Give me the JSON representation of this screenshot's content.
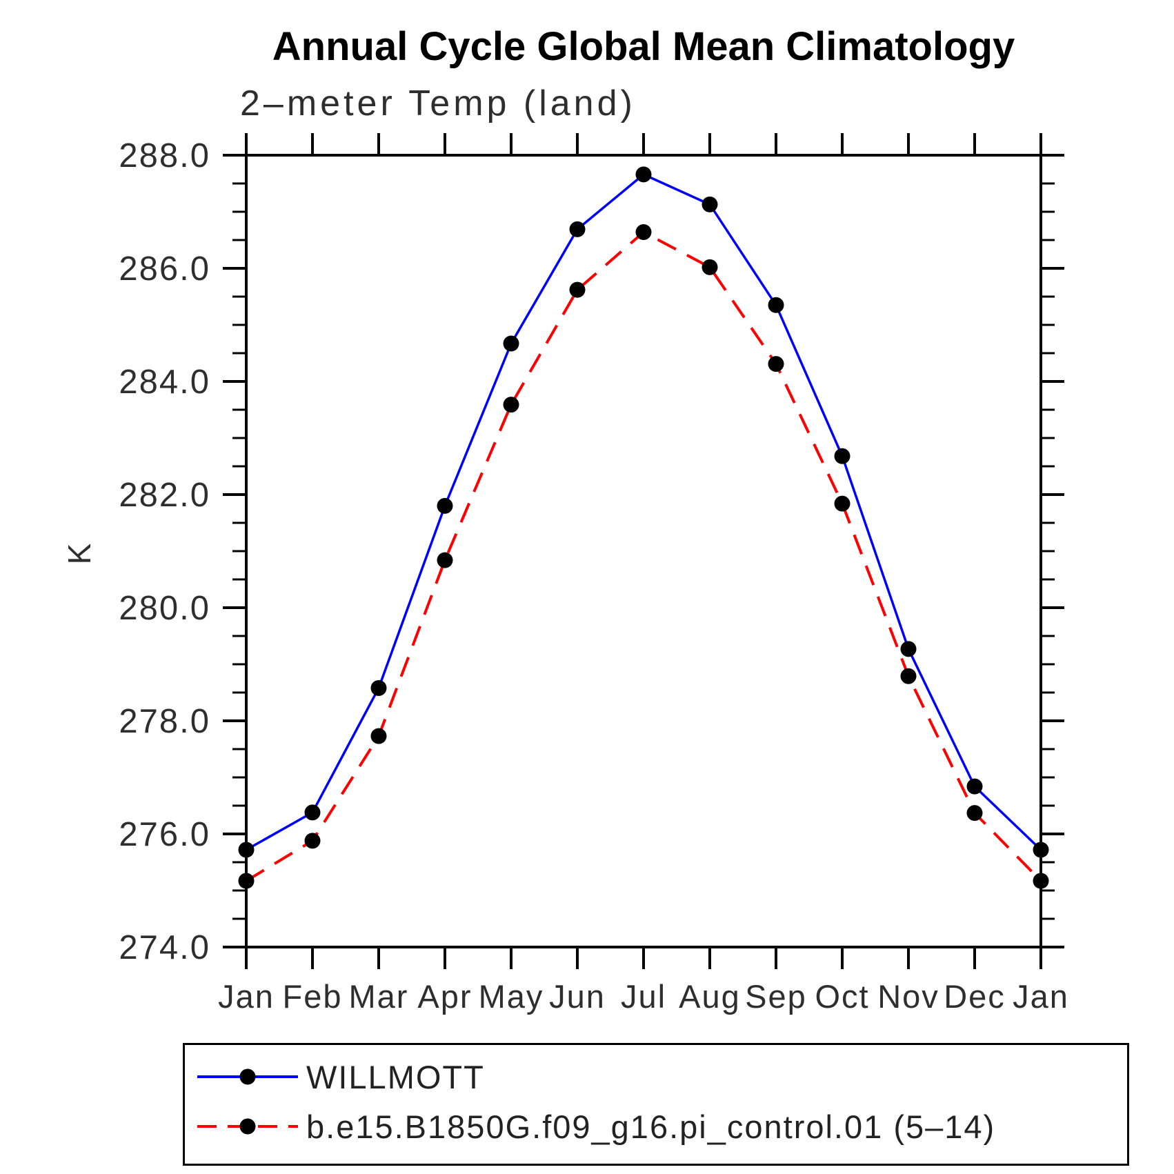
{
  "page": {
    "background_color": "#ffffff",
    "frame_color": "#000000"
  },
  "chart_data": {
    "type": "line",
    "title": "Annual Cycle Global Mean Climatology",
    "subtitle": "2–meter Temp (land)",
    "ylabel": "K",
    "xlabel": "",
    "categories": [
      "Jan",
      "Feb",
      "Mar",
      "Apr",
      "May",
      "Jun",
      "Jul",
      "Aug",
      "Sep",
      "Oct",
      "Nov",
      "Dec",
      "Jan"
    ],
    "series": [
      {
        "name": "WILLMOTT",
        "color": "#0000ff",
        "style": "solid",
        "marker": "circle",
        "marker_color": "#000000",
        "values": [
          275.72,
          276.38,
          278.58,
          281.8,
          284.67,
          286.69,
          287.66,
          287.13,
          285.35,
          282.68,
          279.27,
          276.84,
          275.72
        ]
      },
      {
        "name": "b.e15.B1850G.f09_g16.pi_control.01 (5–14)",
        "color": "#ff0000",
        "style": "dashed",
        "marker": "circle",
        "marker_color": "#000000",
        "values": [
          275.17,
          275.88,
          277.73,
          280.84,
          283.59,
          285.62,
          286.64,
          286.02,
          284.31,
          281.84,
          278.79,
          276.37,
          275.17
        ]
      }
    ],
    "ylim": [
      274.0,
      288.0
    ],
    "ytick_major_step": 2.0,
    "ytick_minor_step": 0.5,
    "ytick_labels": [
      "274.0",
      "276.0",
      "278.0",
      "280.0",
      "282.0",
      "284.0",
      "286.0",
      "288.0"
    ],
    "grid": "off",
    "legend_position": "bottom"
  }
}
